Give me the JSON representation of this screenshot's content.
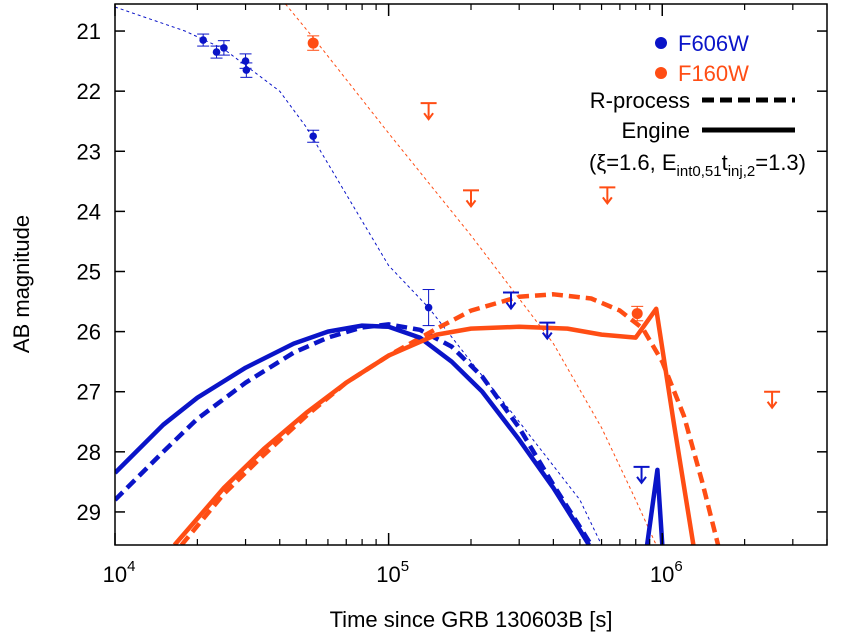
{
  "chart_data": {
    "type": "scatter",
    "xlabel": "Time since GRB 130603B [s]",
    "ylabel": "AB magnitude",
    "x_scale": "log",
    "xlim": [
      10000,
      4000000
    ],
    "ylim": [
      20.55,
      29.55
    ],
    "y_inverted": true,
    "x_ticks": [
      {
        "value": 10000,
        "mantissa": "10",
        "exp": "4"
      },
      {
        "value": 100000,
        "mantissa": "10",
        "exp": "5"
      },
      {
        "value": 1000000,
        "mantissa": "10",
        "exp": "6"
      }
    ],
    "y_ticks": [
      21,
      22,
      23,
      24,
      25,
      26,
      27,
      28,
      29
    ],
    "grid": false,
    "legend_position": "top-right",
    "legend": {
      "f606w": "F606W",
      "f160w": "F160W",
      "rprocess": "R-process",
      "engine": "Engine",
      "params": {
        "open": "(",
        "xi": "ξ=1.6, E",
        "sub1": "int0,51",
        "t": "t",
        "sub2": "inj,2",
        "close": "=1.3)"
      }
    },
    "colors": {
      "f606w": "#0a14c8",
      "f160w": "#ff4d14"
    },
    "series": [
      {
        "name": "F606W",
        "kind": "points",
        "color": "#0a14c8",
        "points": [
          {
            "x": 21000,
            "y": 21.15,
            "err": 0.1
          },
          {
            "x": 23500,
            "y": 21.35,
            "err": 0.1
          },
          {
            "x": 25000,
            "y": 21.28,
            "err": 0.12
          },
          {
            "x": 30000,
            "y": 21.5,
            "err": 0.12
          },
          {
            "x": 30200,
            "y": 21.65,
            "err": 0.12
          },
          {
            "x": 53000,
            "y": 22.75,
            "err": 0.1
          },
          {
            "x": 140000,
            "y": 25.6,
            "err": 0.3
          }
        ],
        "upper_limits": [
          {
            "x": 280000,
            "y": 25.35
          },
          {
            "x": 380000,
            "y": 25.85
          },
          {
            "x": 840000,
            "y": 28.25
          }
        ]
      },
      {
        "name": "F160W",
        "kind": "points",
        "color": "#ff4d14",
        "points": [
          {
            "x": 53000,
            "y": 21.2,
            "err": 0.12
          },
          {
            "x": 810000,
            "y": 25.7,
            "err": 0.12
          }
        ],
        "upper_limits": [
          {
            "x": 140000,
            "y": 22.2
          },
          {
            "x": 200000,
            "y": 23.65
          },
          {
            "x": 630000,
            "y": 23.6
          },
          {
            "x": 2520000,
            "y": 27
          }
        ]
      },
      {
        "kind": "afterglow-fit",
        "color": "#0a14c8",
        "dashed": "fine",
        "points": [
          [
            10000,
            20.6
          ],
          [
            18000,
            21.0
          ],
          [
            25000,
            21.3
          ],
          [
            40000,
            22.0
          ],
          [
            50000,
            22.6
          ],
          [
            100000,
            24.9
          ],
          [
            140000,
            25.6
          ],
          [
            200000,
            26.5
          ],
          [
            300000,
            27.5
          ],
          [
            500000,
            28.8
          ],
          [
            600000,
            29.55
          ]
        ]
      },
      {
        "kind": "afterglow-fit",
        "color": "#ff4d14",
        "dashed": "fine",
        "points": [
          [
            42000,
            20.55
          ],
          [
            55000,
            21.2
          ],
          [
            100000,
            22.7
          ],
          [
            200000,
            24.4
          ],
          [
            400000,
            26.2
          ],
          [
            600000,
            27.6
          ],
          [
            800000,
            28.8
          ],
          [
            950000,
            29.55
          ]
        ]
      },
      {
        "kind": "rprocess-model",
        "color": "#0a14c8",
        "dashed": "thick",
        "points": [
          [
            10000,
            28.8
          ],
          [
            15000,
            28.0
          ],
          [
            20000,
            27.45
          ],
          [
            30000,
            26.85
          ],
          [
            45000,
            26.35
          ],
          [
            60000,
            26.1
          ],
          [
            80000,
            25.93
          ],
          [
            100000,
            25.88
          ],
          [
            130000,
            25.97
          ],
          [
            170000,
            26.25
          ],
          [
            220000,
            26.75
          ],
          [
            300000,
            27.6
          ],
          [
            400000,
            28.55
          ],
          [
            500000,
            29.25
          ],
          [
            550000,
            29.55
          ]
        ]
      },
      {
        "kind": "engine-model",
        "color": "#0a14c8",
        "dashed": "none",
        "points": [
          [
            10000,
            28.35
          ],
          [
            15000,
            27.55
          ],
          [
            20000,
            27.1
          ],
          [
            30000,
            26.6
          ],
          [
            45000,
            26.2
          ],
          [
            60000,
            26.0
          ],
          [
            80000,
            25.9
          ],
          [
            100000,
            25.92
          ],
          [
            130000,
            26.1
          ],
          [
            170000,
            26.5
          ],
          [
            220000,
            27.0
          ],
          [
            300000,
            27.8
          ],
          [
            400000,
            28.6
          ],
          [
            500000,
            29.3
          ],
          [
            540000,
            29.55
          ]
        ]
      },
      {
        "kind": "engine-model",
        "color": "#0a14c8",
        "dashed": "none",
        "points": [
          [
            880000,
            29.55
          ],
          [
            960000,
            28.3
          ],
          [
            1000000,
            29.55
          ]
        ]
      },
      {
        "kind": "rprocess-model",
        "color": "#ff4d14",
        "dashed": "thick",
        "points": [
          [
            17500,
            29.55
          ],
          [
            25000,
            28.7
          ],
          [
            35000,
            28.05
          ],
          [
            50000,
            27.4
          ],
          [
            70000,
            26.85
          ],
          [
            100000,
            26.4
          ],
          [
            150000,
            25.95
          ],
          [
            200000,
            25.65
          ],
          [
            300000,
            25.42
          ],
          [
            400000,
            25.38
          ],
          [
            550000,
            25.45
          ],
          [
            700000,
            25.65
          ],
          [
            850000,
            25.95
          ],
          [
            1000000,
            26.5
          ],
          [
            1200000,
            27.4
          ],
          [
            1400000,
            28.5
          ],
          [
            1600000,
            29.55
          ]
        ]
      },
      {
        "kind": "engine-model",
        "color": "#ff4d14",
        "dashed": "none",
        "points": [
          [
            16500,
            29.55
          ],
          [
            25000,
            28.6
          ],
          [
            35000,
            27.95
          ],
          [
            50000,
            27.35
          ],
          [
            70000,
            26.85
          ],
          [
            100000,
            26.4
          ],
          [
            150000,
            26.05
          ],
          [
            200000,
            25.95
          ],
          [
            300000,
            25.92
          ],
          [
            450000,
            25.95
          ],
          [
            600000,
            26.05
          ],
          [
            800000,
            26.1
          ],
          [
            950000,
            25.62
          ],
          [
            1100000,
            27.5
          ],
          [
            1300000,
            29.55
          ]
        ]
      }
    ]
  }
}
